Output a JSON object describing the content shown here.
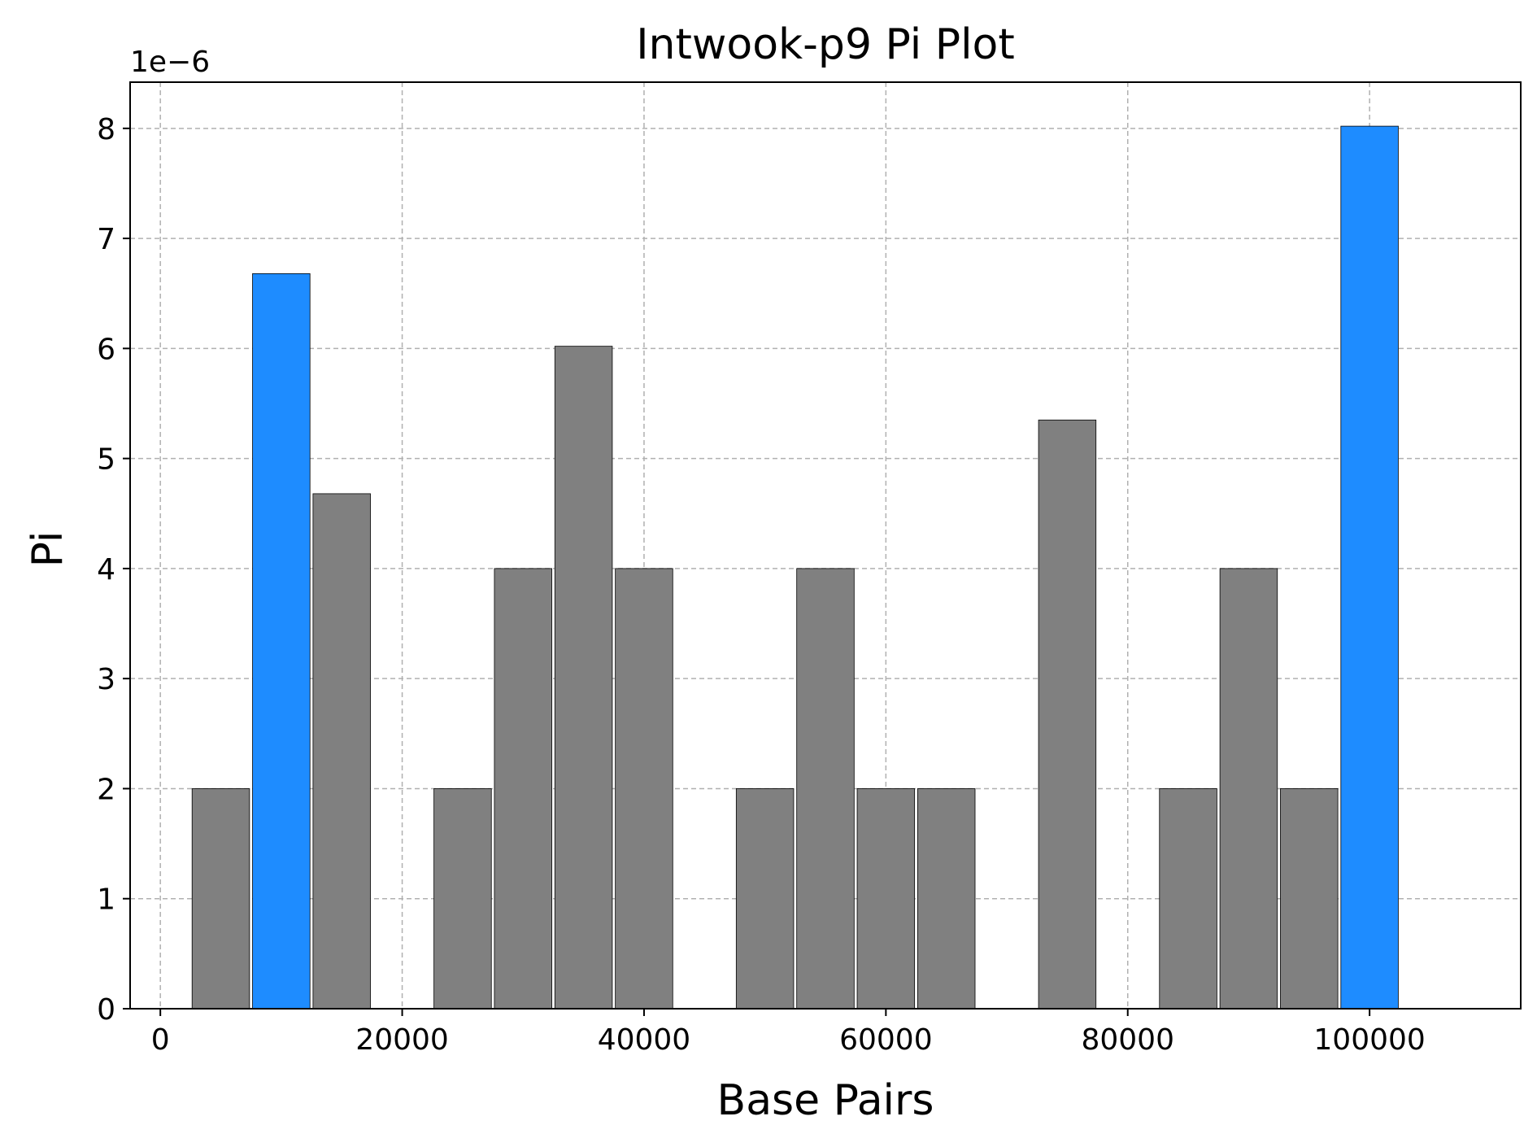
{
  "chart_data": {
    "type": "bar",
    "title": "Intwook-p9 Pi Plot",
    "xlabel": "Base Pairs",
    "ylabel": "Pi",
    "y_offset_label": "1e−6",
    "xlim": [
      -2500,
      112500
    ],
    "ylim": [
      0,
      8.42
    ],
    "y_scale_multiplier": 1e-06,
    "grid": true,
    "x_ticks": [
      0,
      20000,
      40000,
      60000,
      80000,
      100000
    ],
    "x_tick_labels": [
      "0",
      "20000",
      "40000",
      "60000",
      "80000",
      "100000"
    ],
    "y_ticks": [
      0,
      1,
      2,
      3,
      4,
      5,
      6,
      7,
      8
    ],
    "y_tick_labels": [
      "0",
      "1",
      "2",
      "3",
      "4",
      "5",
      "6",
      "7",
      "8"
    ],
    "bar_width": 4750,
    "colors": {
      "default": "#808080",
      "highlight": "#1e8cff",
      "edge": "#000000",
      "grid": "#b0b0b0"
    },
    "bars": [
      {
        "x": 5000,
        "value": 2.0,
        "highlight": false
      },
      {
        "x": 10000,
        "value": 6.68,
        "highlight": true
      },
      {
        "x": 15000,
        "value": 4.68,
        "highlight": false
      },
      {
        "x": 25000,
        "value": 2.0,
        "highlight": false
      },
      {
        "x": 30000,
        "value": 4.0,
        "highlight": false
      },
      {
        "x": 35000,
        "value": 6.02,
        "highlight": false
      },
      {
        "x": 40000,
        "value": 4.0,
        "highlight": false
      },
      {
        "x": 50000,
        "value": 2.0,
        "highlight": false
      },
      {
        "x": 55000,
        "value": 4.0,
        "highlight": false
      },
      {
        "x": 60000,
        "value": 2.0,
        "highlight": false
      },
      {
        "x": 65000,
        "value": 2.0,
        "highlight": false
      },
      {
        "x": 75000,
        "value": 5.35,
        "highlight": false
      },
      {
        "x": 85000,
        "value": 2.0,
        "highlight": false
      },
      {
        "x": 90000,
        "value": 4.0,
        "highlight": false
      },
      {
        "x": 95000,
        "value": 2.0,
        "highlight": false
      },
      {
        "x": 100000,
        "value": 8.02,
        "highlight": true
      }
    ]
  }
}
